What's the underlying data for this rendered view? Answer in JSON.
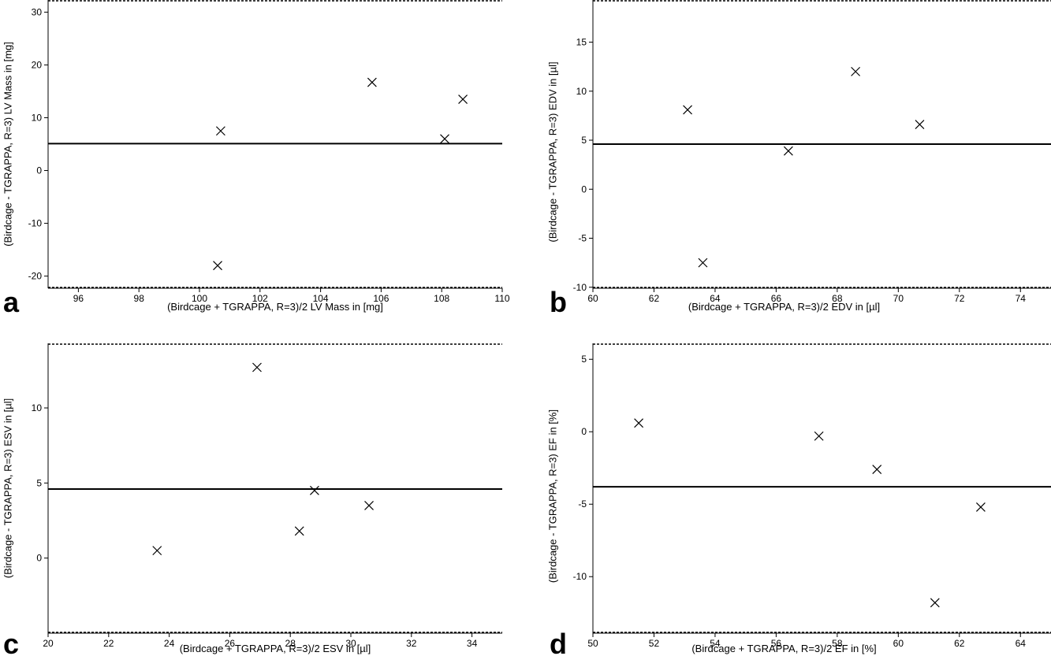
{
  "chart_data": [
    {
      "panel": "a",
      "type": "scatter",
      "xlabel": "(Birdcage + TGRAPPA, R=3)/2 LV Mass in [mg]",
      "ylabel": "(Birdcage - TGRAPPA, R=3) LV Mass in [mg]",
      "xlim": [
        95,
        110
      ],
      "ylim": [
        -22.3,
        32.3
      ],
      "xticks": [
        96,
        98,
        100,
        102,
        104,
        106,
        108,
        110
      ],
      "yticks": [
        -20,
        -10,
        0,
        10,
        20,
        30
      ],
      "points": [
        {
          "x": 100.7,
          "y": 7.5
        },
        {
          "x": 100.6,
          "y": -18.0
        },
        {
          "x": 105.7,
          "y": 16.7
        },
        {
          "x": 108.1,
          "y": 6.0
        },
        {
          "x": 108.7,
          "y": 13.5
        }
      ],
      "mean_line": 5.1,
      "limits_of_agreement": [
        -22.2,
        32.2
      ]
    },
    {
      "panel": "b",
      "type": "scatter",
      "xlabel": "(Birdcage + TGRAPPA, R=3)/2 EDV in [µl]",
      "ylabel": "(Birdcage - TGRAPPA, R=3) EDV in [µl]",
      "xlim": [
        60,
        75
      ],
      "ylim": [
        -10.1,
        19.3
      ],
      "xticks": [
        60,
        62,
        64,
        66,
        68,
        70,
        72,
        74
      ],
      "yticks": [
        -10,
        -5,
        0,
        5,
        10,
        15
      ],
      "points": [
        {
          "x": 63.1,
          "y": 8.1
        },
        {
          "x": 63.6,
          "y": -7.5
        },
        {
          "x": 66.4,
          "y": 3.9
        },
        {
          "x": 68.6,
          "y": 12.0
        },
        {
          "x": 70.7,
          "y": 6.6
        }
      ],
      "mean_line": 4.6,
      "limits_of_agreement": [
        -10.1,
        19.3
      ]
    },
    {
      "panel": "c",
      "type": "scatter",
      "xlabel": "(Birdcage + TGRAPPA, R=3)/2 ESV in [µl]",
      "ylabel": "(Birdcage - TGRAPPA, R=3) ESV in [µl]",
      "xlim": [
        20,
        35
      ],
      "ylim": [
        -5.0,
        14.3
      ],
      "xticks": [
        20,
        22,
        24,
        26,
        28,
        30,
        32,
        34
      ],
      "yticks": [
        0,
        5,
        10
      ],
      "points": [
        {
          "x": 23.6,
          "y": 0.5
        },
        {
          "x": 26.9,
          "y": 12.7
        },
        {
          "x": 28.3,
          "y": 1.8
        },
        {
          "x": 28.8,
          "y": 4.5
        },
        {
          "x": 30.6,
          "y": 3.5
        }
      ],
      "mean_line": 4.6,
      "limits_of_agreement": [
        -5.0,
        14.3
      ]
    },
    {
      "panel": "d",
      "type": "scatter",
      "xlabel": "(Birdcage + TGRAPPA, R=3)/2 EF in [%]",
      "ylabel": "(Birdcage - TGRAPPA, R=3) EF in [%]",
      "xlim": [
        50,
        65
      ],
      "ylim": [
        -13.9,
        6.1
      ],
      "xticks": [
        50,
        52,
        54,
        56,
        58,
        60,
        62,
        64
      ],
      "yticks": [
        -10,
        -5,
        0,
        5
      ],
      "points": [
        {
          "x": 51.5,
          "y": 0.6
        },
        {
          "x": 57.4,
          "y": -0.3
        },
        {
          "x": 59.3,
          "y": -2.6
        },
        {
          "x": 61.2,
          "y": -11.8
        },
        {
          "x": 62.7,
          "y": -5.2
        }
      ],
      "mean_line": -3.8,
      "limits_of_agreement": [
        -13.9,
        6.1
      ]
    }
  ],
  "colors": {
    "line": "#000000",
    "background": "#ffffff"
  },
  "marker_icon": "cross-x-icon"
}
